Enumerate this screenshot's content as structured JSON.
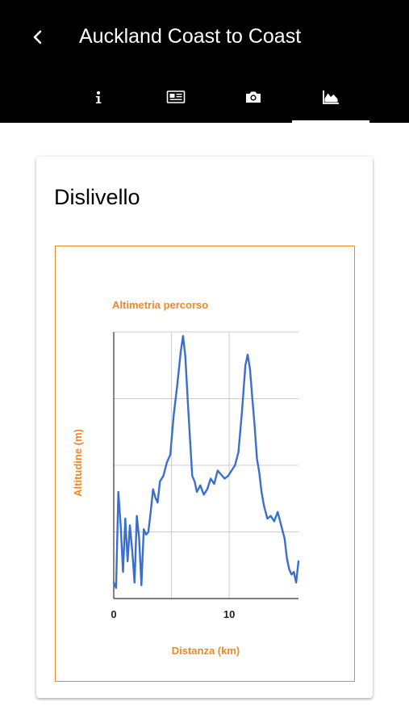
{
  "header": {
    "title": "Auckland Coast to Coast",
    "back_icon": "chevron-left-icon",
    "tabs": [
      {
        "icon": "info-icon",
        "active": false
      },
      {
        "icon": "newspaper-icon",
        "active": false
      },
      {
        "icon": "camera-icon",
        "active": false
      },
      {
        "icon": "area-chart-icon",
        "active": true
      }
    ]
  },
  "card": {
    "title": "Dislivello"
  },
  "colors": {
    "appbar": "#000000",
    "accent_orange": "#f0882a",
    "line_blue": "#3a6fd0",
    "grid": "#cccccc"
  },
  "chart_data": {
    "type": "line",
    "title": "Altimetria percorso",
    "xlabel": "Distanza (km)",
    "ylabel": "Altitudine (m)",
    "xlim": [
      0,
      16
    ],
    "ylim": [
      0,
      200
    ],
    "x_ticks": [
      0,
      10
    ],
    "y_tick_labels": [],
    "grid": true,
    "legend": "none",
    "series": [
      {
        "x": [
          0,
          0.2,
          0.4,
          0.6,
          0.8,
          1.0,
          1.2,
          1.4,
          1.6,
          1.8,
          2.0,
          2.2,
          2.4,
          2.6,
          2.8,
          3.0,
          3.2,
          3.4,
          3.6,
          3.8,
          4.0,
          4.3,
          4.6,
          4.9,
          5.2,
          5.5,
          5.8,
          6.0,
          6.2,
          6.4,
          6.6,
          6.8,
          7.0,
          7.2,
          7.5,
          7.8,
          8.1,
          8.4,
          8.7,
          9.0,
          9.3,
          9.6,
          9.9,
          10.2,
          10.5,
          10.8,
          11.1,
          11.4,
          11.6,
          11.8,
          12.0,
          12.2,
          12.4,
          12.6,
          12.8,
          13.0,
          13.3,
          13.6,
          13.9,
          14.2,
          14.5,
          14.8,
          15.0,
          15.2,
          15.4,
          15.6,
          15.8,
          16.0
        ],
        "values": [
          12,
          8,
          80,
          55,
          20,
          60,
          28,
          55,
          36,
          12,
          62,
          45,
          10,
          52,
          48,
          50,
          65,
          82,
          76,
          72,
          88,
          92,
          102,
          108,
          138,
          160,
          185,
          197,
          182,
          150,
          120,
          92,
          88,
          80,
          85,
          78,
          82,
          90,
          86,
          96,
          93,
          90,
          92,
          96,
          100,
          110,
          140,
          175,
          183,
          172,
          150,
          130,
          105,
          95,
          80,
          70,
          60,
          62,
          58,
          65,
          55,
          45,
          30,
          22,
          18,
          20,
          12,
          28
        ]
      }
    ]
  }
}
